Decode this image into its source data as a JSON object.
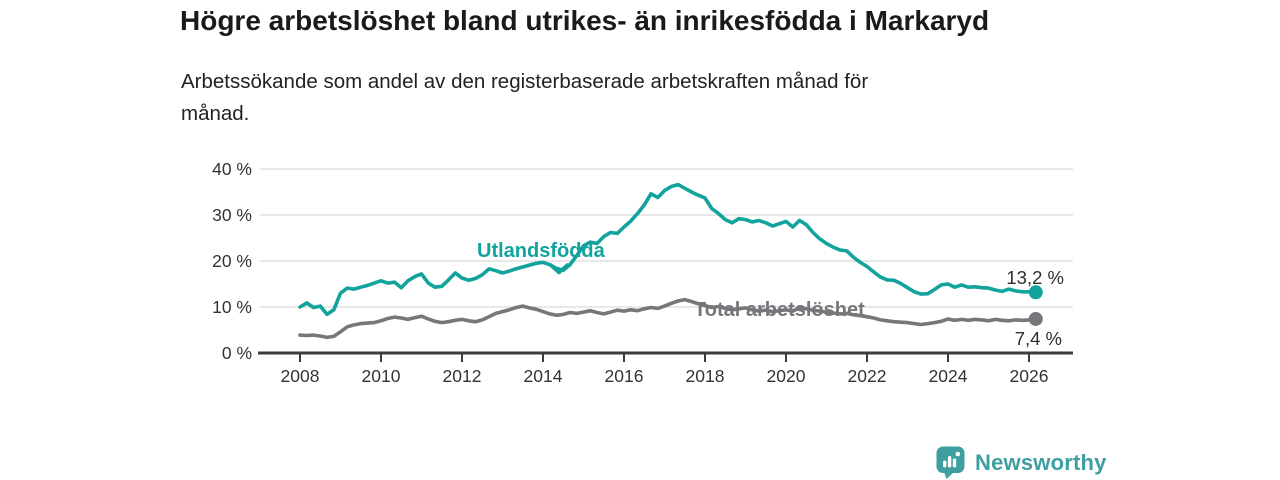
{
  "header": {
    "title": "Högre arbetslöshet bland utrikes- än inrikesfödda i Markaryd",
    "subtitle": "Arbetssökande som andel av den registerbaserade arbetskraften månad för\nmånad."
  },
  "chart_data": {
    "type": "line",
    "title": "Högre arbetslöshet bland utrikes- än inrikesfödda i Markaryd",
    "subtitle": "Arbetssökande som andel av den registerbaserade arbetskraften månad för månad.",
    "unit": "%",
    "x_start": 2008.0,
    "x_step_years": 0.16667,
    "xlim": [
      2007.0,
      2027.1
    ],
    "ylim": [
      0,
      42
    ],
    "grid": "horizontal",
    "legend": "inline-labels",
    "x_ticks": [
      2008,
      2010,
      2012,
      2014,
      2016,
      2018,
      2020,
      2022,
      2024,
      2026
    ],
    "y_ticks": [
      {
        "value": 0,
        "label": "0 %"
      },
      {
        "value": 10,
        "label": "10 %"
      },
      {
        "value": 20,
        "label": "20 %"
      },
      {
        "value": 30,
        "label": "30 %"
      },
      {
        "value": 40,
        "label": "40 %"
      }
    ],
    "series": [
      {
        "name": "Utlandsfödda",
        "color": "#11a39c",
        "end_label": "13,2 %",
        "end_value": 13.2,
        "values": [
          10.0,
          10.9,
          9.9,
          10.2,
          8.4,
          9.4,
          13.0,
          14.1,
          13.9,
          14.3,
          14.7,
          15.2,
          15.7,
          15.2,
          15.4,
          14.2,
          15.7,
          16.6,
          17.2,
          15.2,
          14.3,
          14.5,
          15.9,
          17.4,
          16.3,
          15.8,
          16.2,
          17.0,
          18.3,
          17.9,
          17.4,
          17.8,
          18.3,
          18.7,
          19.1,
          19.5,
          19.7,
          19.2,
          18.4,
          18.0,
          19.2,
          21.2,
          23.3,
          24.1,
          23.8,
          25.3,
          26.2,
          26.0,
          27.4,
          28.7,
          30.3,
          32.2,
          34.6,
          33.8,
          35.3,
          36.2,
          36.6,
          35.8,
          35.0,
          34.3,
          33.7,
          31.4,
          30.3,
          29.0,
          28.3,
          29.2,
          29.0,
          28.5,
          28.8,
          28.3,
          27.6,
          28.1,
          28.6,
          27.4,
          28.8,
          27.9,
          26.2,
          24.8,
          23.8,
          23.0,
          22.4,
          22.2,
          20.8,
          19.7,
          18.8,
          17.6,
          16.5,
          15.9,
          15.8,
          15.1,
          14.2,
          13.3,
          12.8,
          12.9,
          13.8,
          14.8,
          15.0,
          14.3,
          14.8,
          14.3,
          14.4,
          14.2,
          14.1,
          13.7,
          13.4,
          13.9,
          13.5,
          13.3,
          13.3,
          13.2
        ]
      },
      {
        "name": "Total arbetslöshet",
        "color": "#77777b",
        "end_label": "7,4 %",
        "end_value": 7.4,
        "values": [
          3.9,
          3.8,
          3.9,
          3.7,
          3.4,
          3.6,
          4.6,
          5.7,
          6.1,
          6.4,
          6.5,
          6.6,
          7.0,
          7.5,
          7.8,
          7.6,
          7.3,
          7.7,
          8.0,
          7.4,
          6.9,
          6.6,
          6.8,
          7.1,
          7.3,
          7.0,
          6.8,
          7.2,
          7.9,
          8.6,
          9.0,
          9.4,
          9.9,
          10.2,
          9.8,
          9.5,
          9.0,
          8.5,
          8.2,
          8.4,
          8.8,
          8.6,
          8.9,
          9.2,
          8.8,
          8.5,
          8.9,
          9.3,
          9.1,
          9.4,
          9.2,
          9.6,
          9.9,
          9.7,
          10.2,
          10.8,
          11.3,
          11.6,
          11.2,
          10.7,
          10.3,
          9.9,
          10.1,
          9.7,
          9.4,
          9.6,
          9.8,
          9.4,
          9.1,
          9.3,
          9.0,
          9.2,
          9.4,
          9.1,
          9.8,
          9.6,
          9.3,
          9.1,
          8.9,
          8.7,
          8.5,
          8.6,
          8.3,
          8.1,
          7.9,
          7.6,
          7.2,
          7.0,
          6.8,
          6.7,
          6.6,
          6.4,
          6.2,
          6.4,
          6.6,
          6.9,
          7.4,
          7.1,
          7.3,
          7.1,
          7.3,
          7.2,
          7.0,
          7.3,
          7.1,
          7.0,
          7.2,
          7.1,
          7.2,
          7.4
        ]
      }
    ]
  },
  "footer": {
    "brand": "Newsworthy"
  },
  "colors": {
    "teal": "#11a39c",
    "gray": "#77777b",
    "logo_teal": "#3f9fa0",
    "axis": "#3c3c3c",
    "gridline": "#d9d9d9",
    "tick_text": "#333333"
  }
}
